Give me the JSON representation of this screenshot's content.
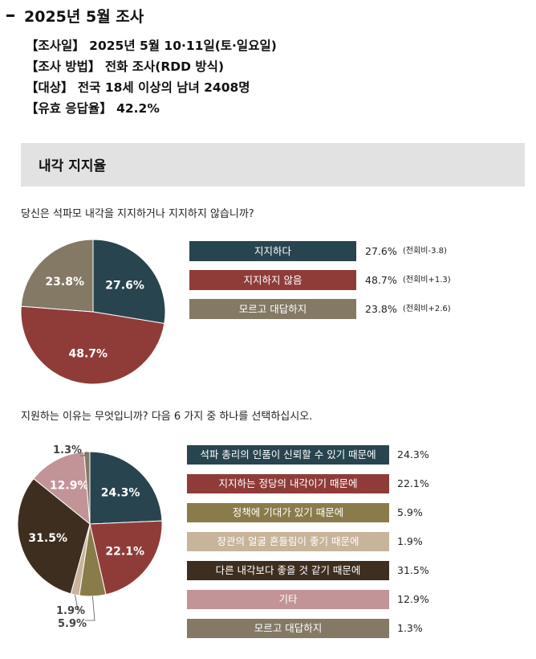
{
  "header": {
    "title": "2025년 5월 조사",
    "info": [
      "【조사일】 2025년 5월 10·11일(토·일요일)",
      "【조사 방법】 전화 조사(RDD 방식)",
      "【대상】 전국 18세 이상의 남녀 2408명",
      "【유효 응답율】 42.2%"
    ]
  },
  "section": {
    "title": "내각 지지율"
  },
  "chart_data": [
    {
      "type": "pie",
      "question": "당신은 석파모 내각을 지지하거나 지지하지 않습니까?",
      "slices": [
        {
          "label": "지지하다",
          "value": 27.6,
          "value_text": "27.6%",
          "delta": "(전회비-3.8)",
          "color": "#28454f"
        },
        {
          "label": "지지하지 않음",
          "value": 48.7,
          "value_text": "48.7%",
          "delta": "(전회비+1.3)",
          "color": "#8f3c39"
        },
        {
          "label": "모르고 대답하지",
          "value": 23.8,
          "value_text": "23.8%",
          "delta": "(전회비+2.6)",
          "color": "#837965"
        }
      ]
    },
    {
      "type": "pie",
      "question": "지원하는 이유는 무엇입니까? 다음 6 가지 중 하나를 선택하십시오.",
      "slices": [
        {
          "label": "석파 총리의 인품이 신뢰할 수 있기 때문에",
          "value": 24.3,
          "value_text": "24.3%",
          "color": "#28454f"
        },
        {
          "label": "지지하는 정당의 내각이기 때문에",
          "value": 22.1,
          "value_text": "22.1%",
          "color": "#8f3c39"
        },
        {
          "label": "정책에 기대가 있기 때문에",
          "value": 5.9,
          "value_text": "5.9%",
          "color": "#8a7c4a"
        },
        {
          "label": "장관의 얼굴 흔들림이 좋기 때문에",
          "value": 1.9,
          "value_text": "1.9%",
          "color": "#c8b49a"
        },
        {
          "label": "다른 내각보다 좋을 것 같기 때문에",
          "value": 31.5,
          "value_text": "31.5%",
          "color": "#3e2e1f"
        },
        {
          "label": "기타",
          "value": 12.9,
          "value_text": "12.9%",
          "color": "#c29497"
        },
        {
          "label": "모르고 대답하지",
          "value": 1.3,
          "value_text": "1.3%",
          "color": "#837965"
        }
      ]
    }
  ]
}
